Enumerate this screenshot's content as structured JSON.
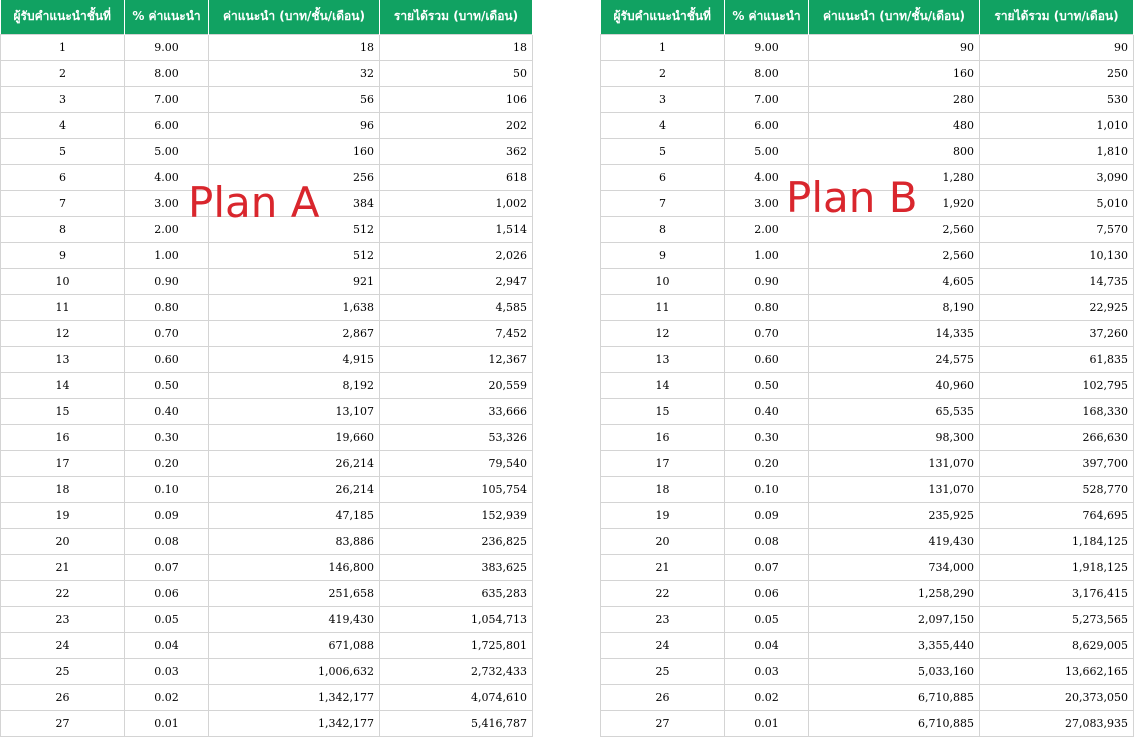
{
  "headers": [
    "ผู้รับคำแนะนำชั้นที่",
    "% ค่าแนะนำ",
    "ค่าแนะนำ (บาท/ชั้น/เดือน)",
    "รายได้รวม (บาท/เดือน)"
  ],
  "plan_a": {
    "label": "Plan A",
    "rows": [
      [
        "1",
        "9.00",
        "18",
        "18"
      ],
      [
        "2",
        "8.00",
        "32",
        "50"
      ],
      [
        "3",
        "7.00",
        "56",
        "106"
      ],
      [
        "4",
        "6.00",
        "96",
        "202"
      ],
      [
        "5",
        "5.00",
        "160",
        "362"
      ],
      [
        "6",
        "4.00",
        "256",
        "618"
      ],
      [
        "7",
        "3.00",
        "384",
        "1,002"
      ],
      [
        "8",
        "2.00",
        "512",
        "1,514"
      ],
      [
        "9",
        "1.00",
        "512",
        "2,026"
      ],
      [
        "10",
        "0.90",
        "921",
        "2,947"
      ],
      [
        "11",
        "0.80",
        "1,638",
        "4,585"
      ],
      [
        "12",
        "0.70",
        "2,867",
        "7,452"
      ],
      [
        "13",
        "0.60",
        "4,915",
        "12,367"
      ],
      [
        "14",
        "0.50",
        "8,192",
        "20,559"
      ],
      [
        "15",
        "0.40",
        "13,107",
        "33,666"
      ],
      [
        "16",
        "0.30",
        "19,660",
        "53,326"
      ],
      [
        "17",
        "0.20",
        "26,214",
        "79,540"
      ],
      [
        "18",
        "0.10",
        "26,214",
        "105,754"
      ],
      [
        "19",
        "0.09",
        "47,185",
        "152,939"
      ],
      [
        "20",
        "0.08",
        "83,886",
        "236,825"
      ],
      [
        "21",
        "0.07",
        "146,800",
        "383,625"
      ],
      [
        "22",
        "0.06",
        "251,658",
        "635,283"
      ],
      [
        "23",
        "0.05",
        "419,430",
        "1,054,713"
      ],
      [
        "24",
        "0.04",
        "671,088",
        "1,725,801"
      ],
      [
        "25",
        "0.03",
        "1,006,632",
        "2,732,433"
      ],
      [
        "26",
        "0.02",
        "1,342,177",
        "4,074,610"
      ],
      [
        "27",
        "0.01",
        "1,342,177",
        "5,416,787"
      ]
    ]
  },
  "plan_b": {
    "label": "Plan B",
    "rows": [
      [
        "1",
        "9.00",
        "90",
        "90"
      ],
      [
        "2",
        "8.00",
        "160",
        "250"
      ],
      [
        "3",
        "7.00",
        "280",
        "530"
      ],
      [
        "4",
        "6.00",
        "480",
        "1,010"
      ],
      [
        "5",
        "5.00",
        "800",
        "1,810"
      ],
      [
        "6",
        "4.00",
        "1,280",
        "3,090"
      ],
      [
        "7",
        "3.00",
        "1,920",
        "5,010"
      ],
      [
        "8",
        "2.00",
        "2,560",
        "7,570"
      ],
      [
        "9",
        "1.00",
        "2,560",
        "10,130"
      ],
      [
        "10",
        "0.90",
        "4,605",
        "14,735"
      ],
      [
        "11",
        "0.80",
        "8,190",
        "22,925"
      ],
      [
        "12",
        "0.70",
        "14,335",
        "37,260"
      ],
      [
        "13",
        "0.60",
        "24,575",
        "61,835"
      ],
      [
        "14",
        "0.50",
        "40,960",
        "102,795"
      ],
      [
        "15",
        "0.40",
        "65,535",
        "168,330"
      ],
      [
        "16",
        "0.30",
        "98,300",
        "266,630"
      ],
      [
        "17",
        "0.20",
        "131,070",
        "397,700"
      ],
      [
        "18",
        "0.10",
        "131,070",
        "528,770"
      ],
      [
        "19",
        "0.09",
        "235,925",
        "764,695"
      ],
      [
        "20",
        "0.08",
        "419,430",
        "1,184,125"
      ],
      [
        "21",
        "0.07",
        "734,000",
        "1,918,125"
      ],
      [
        "22",
        "0.06",
        "1,258,290",
        "3,176,415"
      ],
      [
        "23",
        "0.05",
        "2,097,150",
        "5,273,565"
      ],
      [
        "24",
        "0.04",
        "3,355,440",
        "8,629,005"
      ],
      [
        "25",
        "0.03",
        "5,033,160",
        "13,662,165"
      ],
      [
        "26",
        "0.02",
        "6,710,885",
        "20,373,050"
      ],
      [
        "27",
        "0.01",
        "6,710,885",
        "27,083,935"
      ]
    ]
  },
  "colors": {
    "header_bg": "#11a262",
    "header_text": "#ffffff",
    "overlay_text": "#d9262d",
    "grid": "#d4d4d4"
  }
}
